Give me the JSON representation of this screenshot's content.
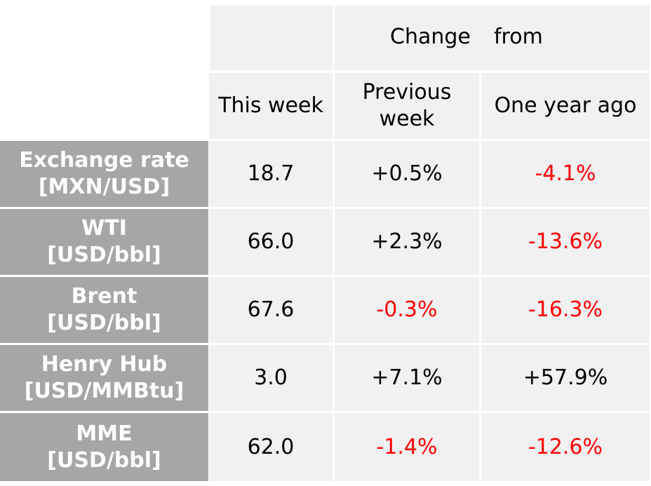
{
  "header": {
    "change_word": "Change",
    "from_word": "from",
    "this_week": "This week",
    "previous_week": "Previous week",
    "one_year_ago": "One year ago"
  },
  "colors": {
    "row_header_bg": "#a6a6a6",
    "cell_bg": "#f1f1f1",
    "negative": "#ff0000"
  },
  "rows": [
    {
      "label_line1": "Exchange rate",
      "label_line2": "[MXN/USD]",
      "this_week": "18.7",
      "prev_week": "+0.5%",
      "year_ago": "-4.1%"
    },
    {
      "label_line1": "WTI",
      "label_line2": "[USD/bbl]",
      "this_week": "66.0",
      "prev_week": "+2.3%",
      "year_ago": "-13.6%"
    },
    {
      "label_line1": "Brent",
      "label_line2": "[USD/bbl]",
      "this_week": "67.6",
      "prev_week": "-0.3%",
      "year_ago": "-16.3%"
    },
    {
      "label_line1": "Henry Hub",
      "label_line2": "[USD/MMBtu]",
      "this_week": "3.0",
      "prev_week": "+7.1%",
      "year_ago": "+57.9%"
    },
    {
      "label_line1": "MME",
      "label_line2": "[USD/bbl]",
      "this_week": "62.0",
      "prev_week": "-1.4%",
      "year_ago": "-12.6%"
    }
  ]
}
